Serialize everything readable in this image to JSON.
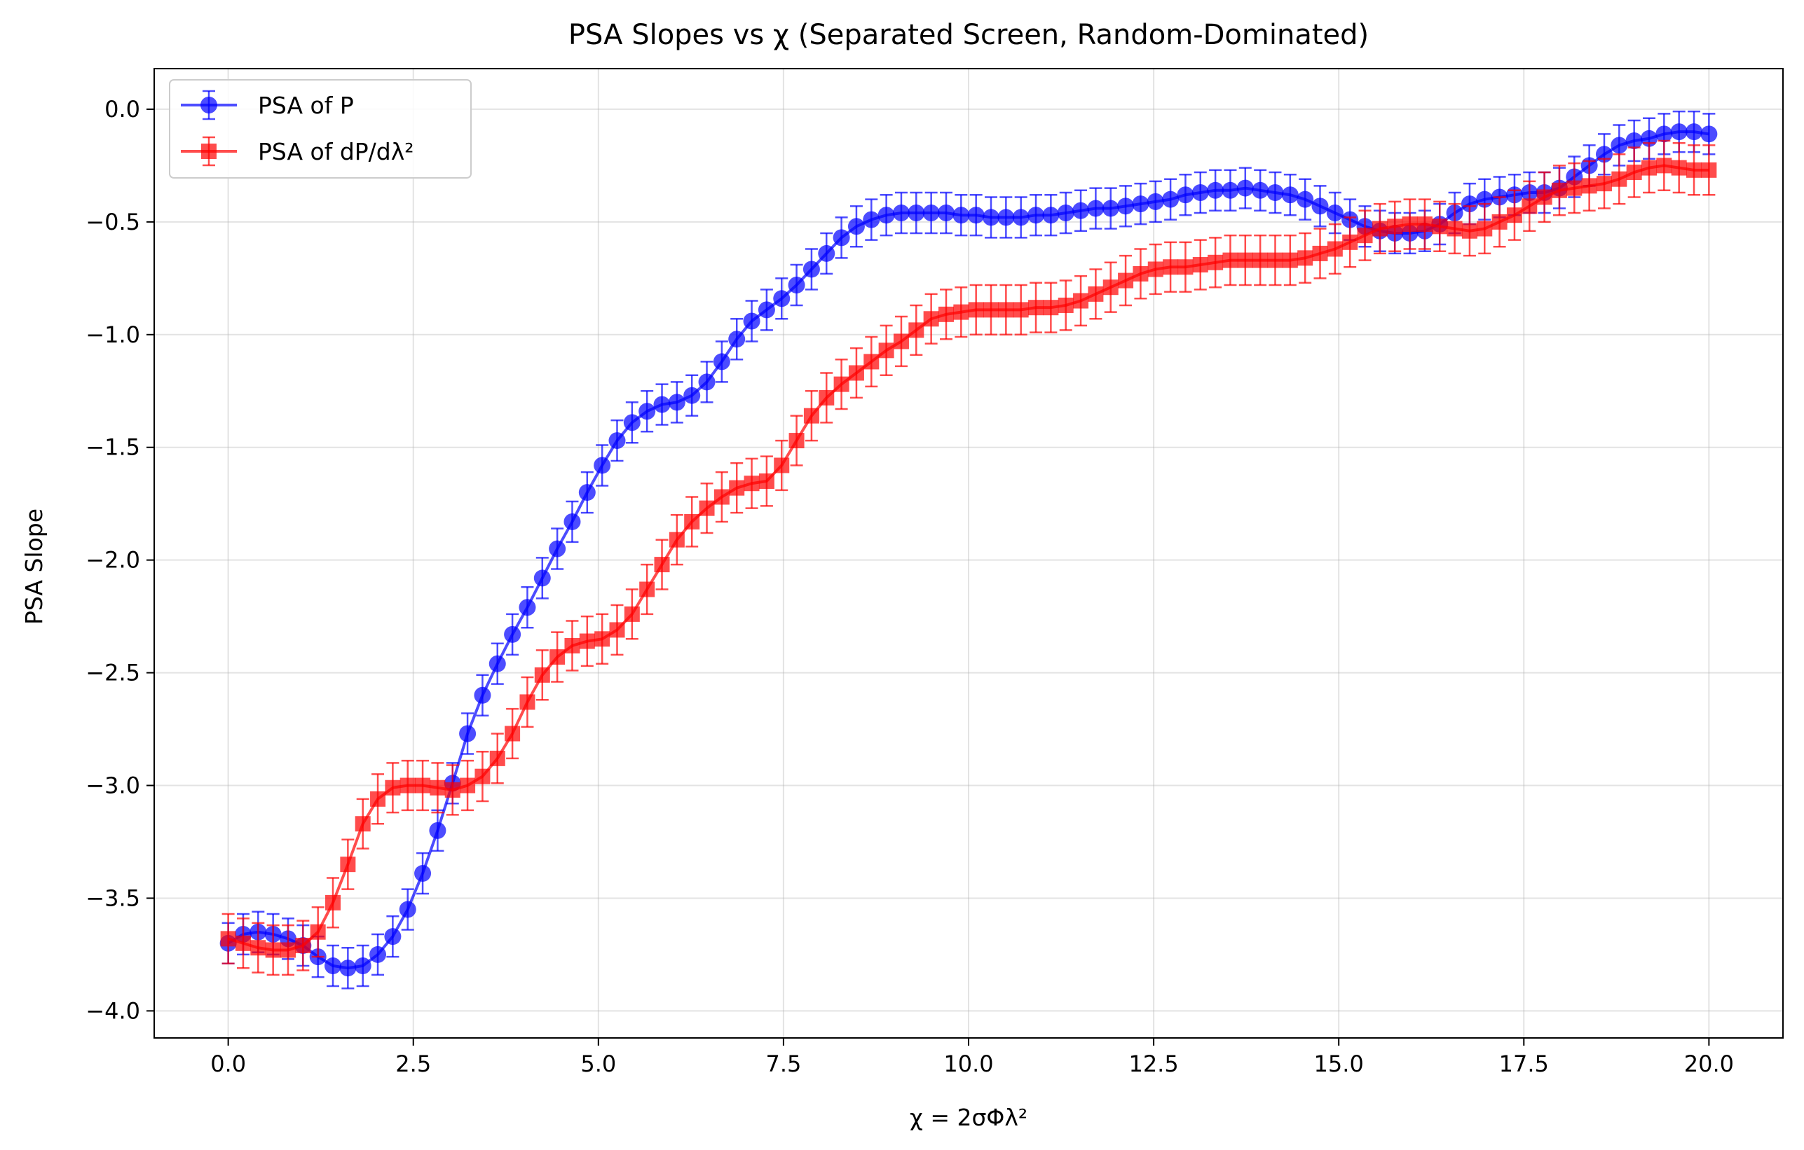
{
  "chart_data": {
    "type": "line",
    "title": "PSA Slopes vs χ (Separated Screen, Random-Dominated)",
    "xlabel": "χ = 2σΦλ²",
    "ylabel": "PSA Slope",
    "xlim": [
      -1.0,
      21.0
    ],
    "ylim": [
      -4.12,
      0.18
    ],
    "x_ticks": [
      0,
      2.5,
      5,
      7.5,
      10,
      12.5,
      15,
      17.5,
      20
    ],
    "x_tick_labels": [
      "0.0",
      "2.5",
      "5.0",
      "7.5",
      "10.0",
      "12.5",
      "15.0",
      "17.5",
      "20.0"
    ],
    "y_ticks": [
      0,
      -0.5,
      -1,
      -1.5,
      -2,
      -2.5,
      -3,
      -3.5,
      -4
    ],
    "y_tick_labels": [
      "0.0",
      "−0.5",
      "−1.0",
      "−1.5",
      "−2.0",
      "−2.5",
      "−3.0",
      "−3.5",
      "−4.0"
    ],
    "grid": true,
    "legend_position": "upper-left",
    "x_range": [
      0,
      20
    ],
    "n_points": 100,
    "series": [
      {
        "name": "PSA of P",
        "color": "#0000ff",
        "marker": "circle",
        "error": 0.09,
        "values": [
          -3.7,
          -3.66,
          -3.65,
          -3.66,
          -3.68,
          -3.71,
          -3.76,
          -3.8,
          -3.81,
          -3.8,
          -3.75,
          -3.67,
          -3.55,
          -3.39,
          -3.2,
          -2.99,
          -2.77,
          -2.6,
          -2.46,
          -2.33,
          -2.21,
          -2.08,
          -1.95,
          -1.83,
          -1.7,
          -1.58,
          -1.47,
          -1.39,
          -1.34,
          -1.31,
          -1.3,
          -1.27,
          -1.21,
          -1.12,
          -1.02,
          -0.94,
          -0.89,
          -0.84,
          -0.78,
          -0.71,
          -0.64,
          -0.57,
          -0.52,
          -0.49,
          -0.47,
          -0.46,
          -0.46,
          -0.46,
          -0.46,
          -0.47,
          -0.47,
          -0.48,
          -0.48,
          -0.48,
          -0.47,
          -0.47,
          -0.46,
          -0.45,
          -0.44,
          -0.44,
          -0.43,
          -0.42,
          -0.41,
          -0.4,
          -0.38,
          -0.37,
          -0.36,
          -0.36,
          -0.35,
          -0.36,
          -0.37,
          -0.38,
          -0.4,
          -0.43,
          -0.46,
          -0.49,
          -0.52,
          -0.54,
          -0.55,
          -0.55,
          -0.54,
          -0.51,
          -0.46,
          -0.42,
          -0.4,
          -0.39,
          -0.38,
          -0.37,
          -0.37,
          -0.35,
          -0.3,
          -0.25,
          -0.2,
          -0.16,
          -0.14,
          -0.13,
          -0.11,
          -0.1,
          -0.1,
          -0.11
        ]
      },
      {
        "name": "PSA of dP/dλ²",
        "color": "#ff0000",
        "marker": "square",
        "error": 0.11,
        "values": [
          -3.68,
          -3.7,
          -3.72,
          -3.73,
          -3.73,
          -3.71,
          -3.65,
          -3.52,
          -3.35,
          -3.17,
          -3.06,
          -3.01,
          -3.0,
          -3.0,
          -3.01,
          -3.02,
          -3.0,
          -2.96,
          -2.88,
          -2.77,
          -2.63,
          -2.51,
          -2.43,
          -2.38,
          -2.36,
          -2.35,
          -2.31,
          -2.24,
          -2.13,
          -2.02,
          -1.91,
          -1.83,
          -1.77,
          -1.72,
          -1.68,
          -1.66,
          -1.65,
          -1.58,
          -1.47,
          -1.36,
          -1.28,
          -1.22,
          -1.17,
          -1.12,
          -1.07,
          -1.03,
          -0.98,
          -0.93,
          -0.91,
          -0.9,
          -0.89,
          -0.89,
          -0.89,
          -0.89,
          -0.88,
          -0.88,
          -0.87,
          -0.85,
          -0.82,
          -0.79,
          -0.76,
          -0.73,
          -0.71,
          -0.7,
          -0.7,
          -0.69,
          -0.68,
          -0.67,
          -0.67,
          -0.67,
          -0.67,
          -0.67,
          -0.66,
          -0.64,
          -0.62,
          -0.59,
          -0.56,
          -0.53,
          -0.52,
          -0.51,
          -0.51,
          -0.52,
          -0.53,
          -0.54,
          -0.53,
          -0.5,
          -0.47,
          -0.43,
          -0.39,
          -0.36,
          -0.35,
          -0.34,
          -0.33,
          -0.31,
          -0.28,
          -0.26,
          -0.25,
          -0.26,
          -0.27,
          -0.27
        ]
      }
    ]
  }
}
